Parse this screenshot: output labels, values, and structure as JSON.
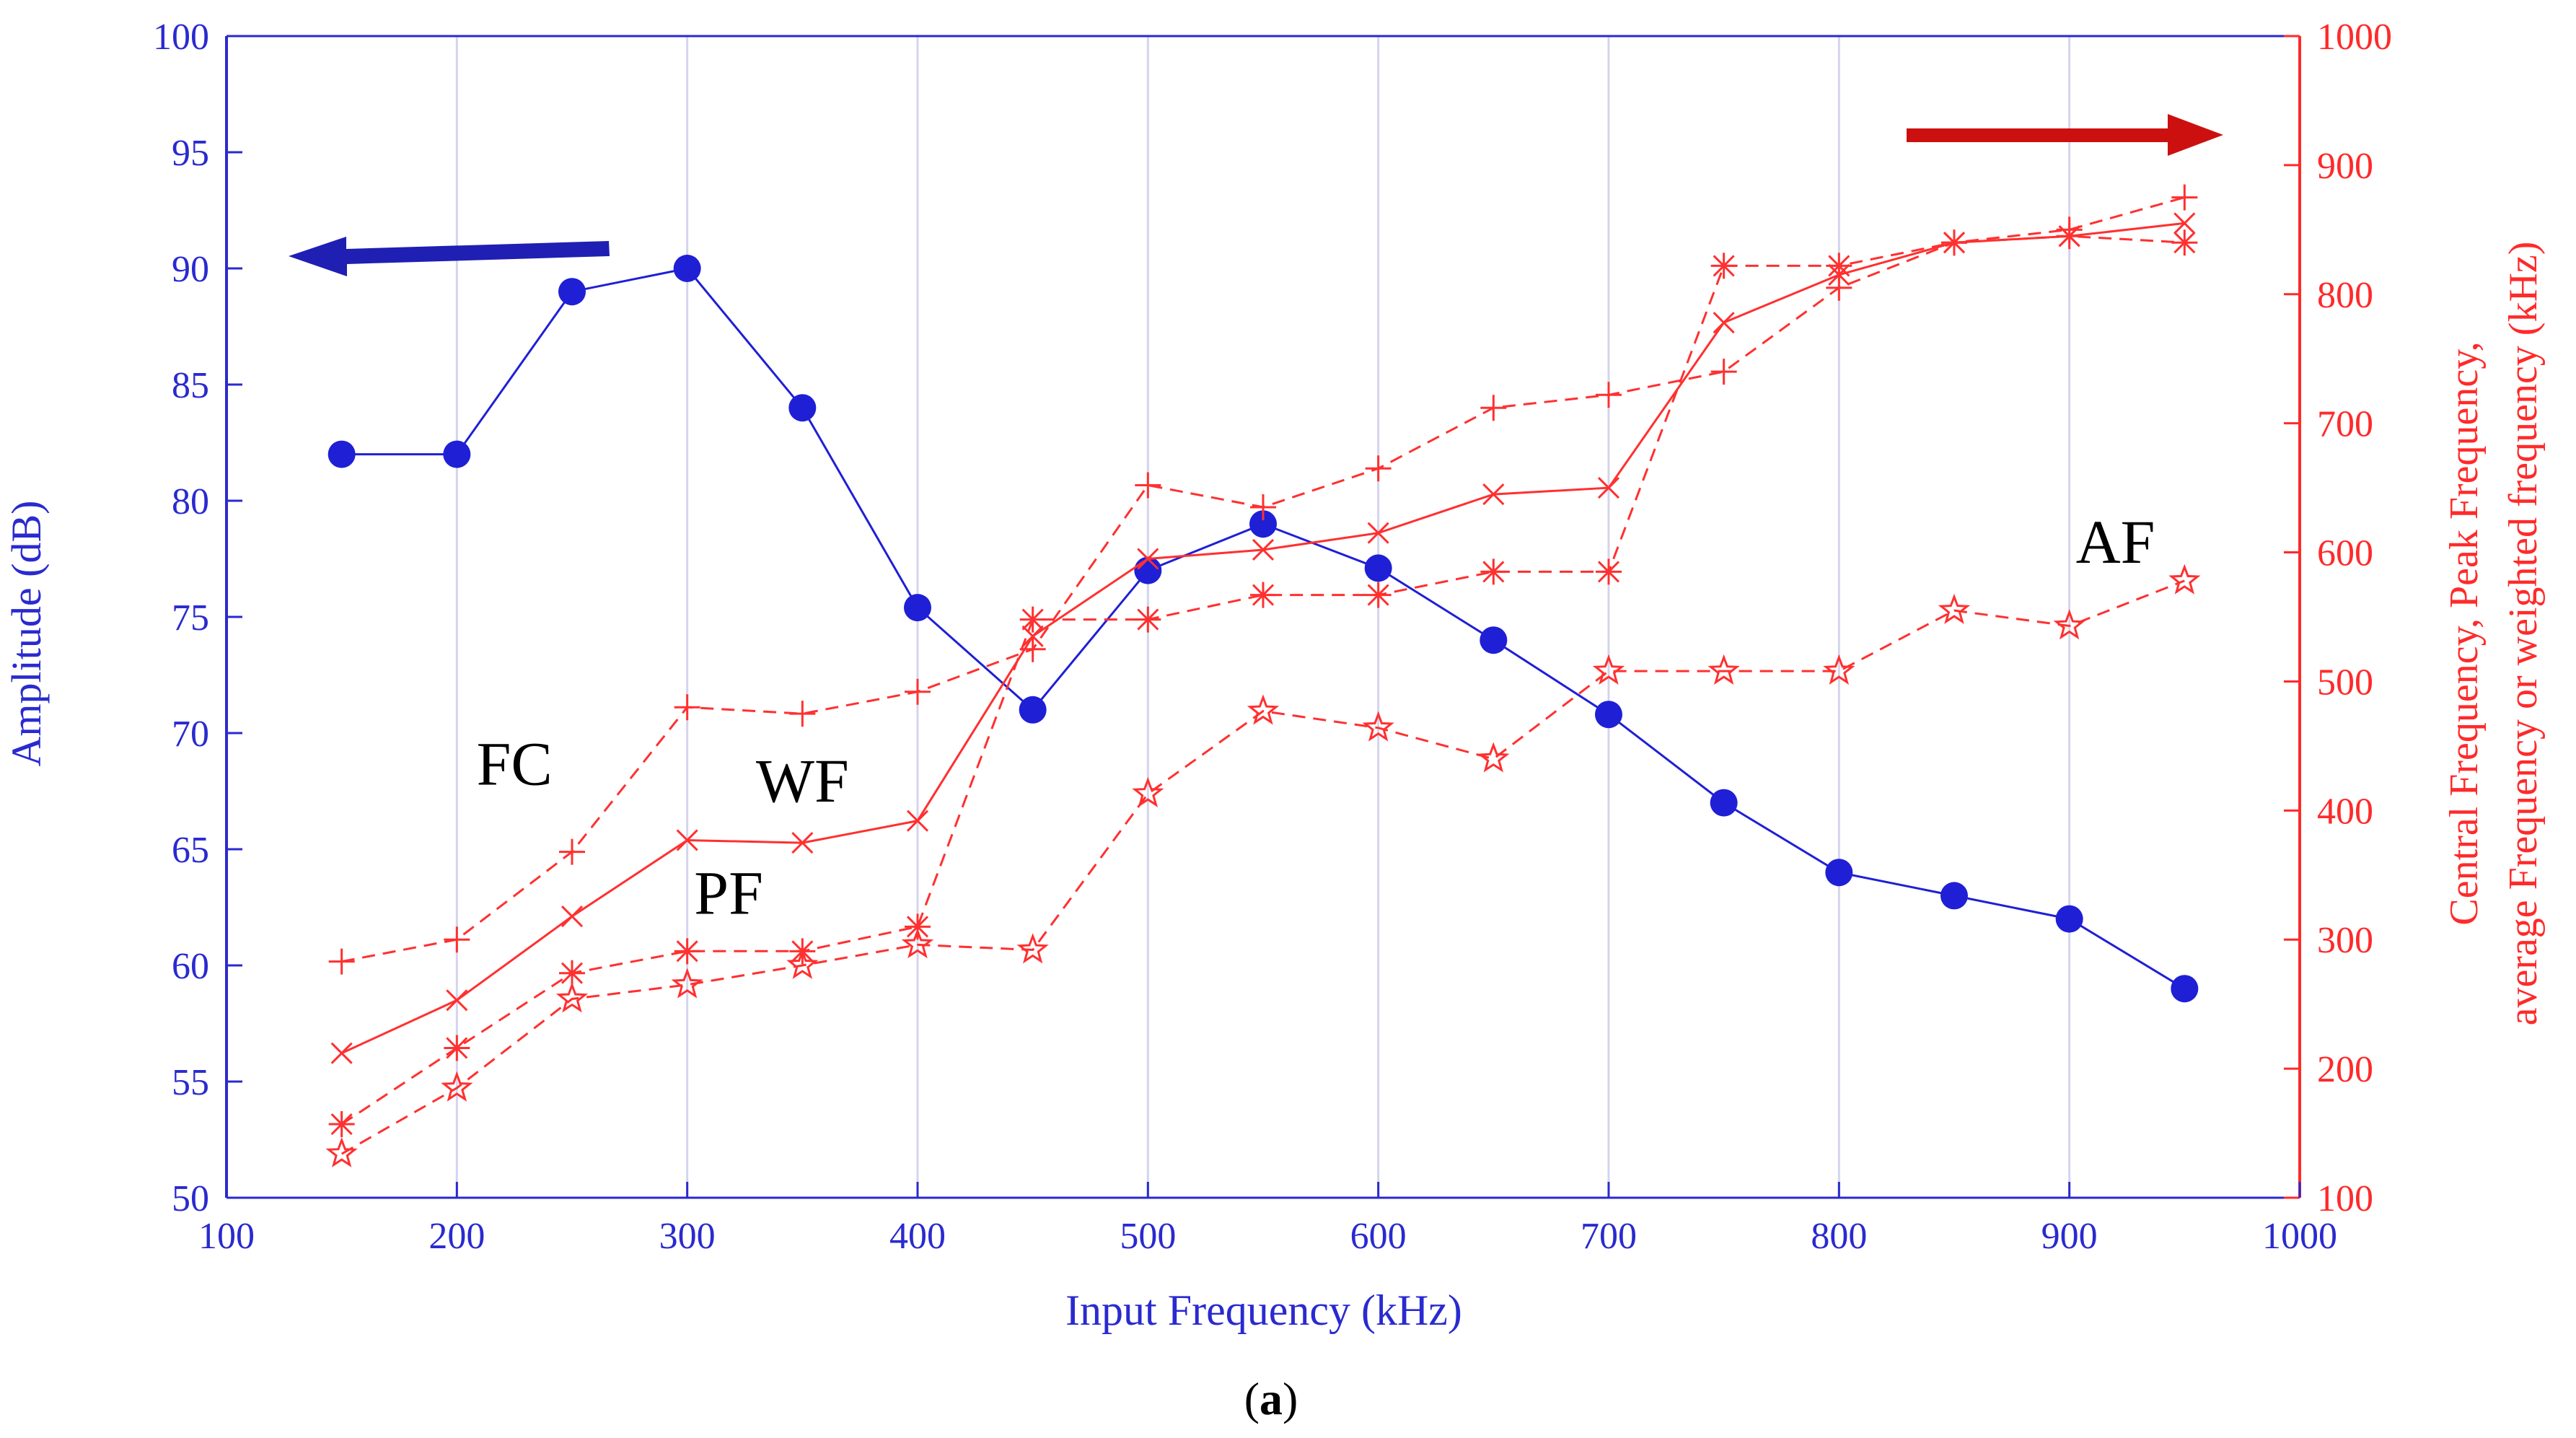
{
  "chart_data": {
    "type": "line",
    "caption": {
      "open": "(",
      "letter": "a",
      "close": ")"
    },
    "xlabel": "Input Frequency (kHz)",
    "xlim": [
      100,
      1000
    ],
    "xticks": [
      100,
      200,
      300,
      400,
      500,
      600,
      700,
      800,
      900,
      1000
    ],
    "ylabel_left": "Amplitude (dB)",
    "ylim_left": [
      50,
      100
    ],
    "yticks_left": [
      50,
      55,
      60,
      65,
      70,
      75,
      80,
      85,
      90,
      95,
      100
    ],
    "ylabel_right": [
      "Central Frequency, Peak Frequency,",
      "average Frequency or weighted frequency (kHz)"
    ],
    "ylim_right": [
      100,
      1000
    ],
    "yticks_right": [
      100,
      200,
      300,
      400,
      500,
      600,
      700,
      800,
      900,
      1000
    ],
    "grid": true,
    "x": [
      150,
      200,
      250,
      300,
      350,
      400,
      450,
      500,
      550,
      600,
      650,
      700,
      750,
      800,
      850,
      900,
      950
    ],
    "series": [
      {
        "name": "Amplitude",
        "axis": "left",
        "color": "#1f1fd6",
        "marker": "dot",
        "line": "solid",
        "values": [
          82,
          82,
          89,
          90,
          84,
          75.4,
          71,
          77,
          79,
          77.1,
          74,
          70.8,
          67,
          64,
          63,
          62,
          59
        ]
      },
      {
        "name": "FC",
        "axis": "right",
        "color": "#ff3030",
        "marker": "plus",
        "line": "dashed",
        "values": [
          283,
          300,
          368,
          480,
          475,
          492,
          525,
          652,
          635,
          665,
          712,
          722,
          740,
          805,
          840,
          850,
          875
        ]
      },
      {
        "name": "WF",
        "axis": "right",
        "color": "#ff3030",
        "marker": "x",
        "line": "solid",
        "values": [
          212,
          253,
          318,
          377,
          375,
          392,
          535,
          595,
          602,
          615,
          645,
          650,
          778,
          815,
          840,
          845,
          855
        ]
      },
      {
        "name": "PF",
        "axis": "right",
        "color": "#ff3030",
        "marker": "asterisk",
        "line": "dashed",
        "values": [
          157,
          216,
          274,
          291,
          291,
          310,
          548,
          548,
          567,
          567,
          585,
          585,
          822,
          822,
          840,
          845,
          840
        ]
      },
      {
        "name": "AF",
        "axis": "right",
        "color": "#ff3030",
        "marker": "star",
        "line": "dashed",
        "values": [
          134,
          185,
          254,
          265,
          280,
          296,
          292,
          413,
          477,
          464,
          440,
          508,
          508,
          508,
          555,
          543,
          578
        ]
      }
    ],
    "annotations": [
      {
        "text": "FC",
        "x": 225,
        "y_right": 420
      },
      {
        "text": "WF",
        "x": 350,
        "y_right": 407
      },
      {
        "text": "PF",
        "x": 318,
        "y_right": 320
      },
      {
        "text": "AF",
        "x": 920,
        "y_right": 592
      }
    ],
    "arrows": [
      {
        "name": "left-axis-arrow",
        "direction": "left",
        "color": "#1f1fb4"
      },
      {
        "name": "right-axis-arrow",
        "direction": "right",
        "color": "#cc1010"
      }
    ]
  }
}
